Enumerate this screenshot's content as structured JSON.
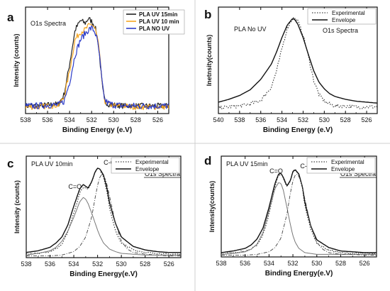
{
  "chart_data": [
    {
      "panel_letter": "a",
      "type": "line",
      "annotation": "O1s Spectra",
      "xlabel": "Binding Energy (e.V)",
      "ylabel": "Intensity (counts)",
      "xlim": [
        538,
        525
      ],
      "x_ticks": [
        538,
        536,
        534,
        532,
        530,
        528,
        526
      ],
      "y_ticks": "none",
      "legend_position": "top-right",
      "series": [
        {
          "name": "PLA  UV 15min",
          "color": "#222222",
          "noise": 0.03,
          "x": [
            538,
            537,
            536,
            535,
            534.5,
            534,
            533.5,
            533,
            532.6,
            532.3,
            532,
            531.7,
            531.4,
            531.2,
            531,
            530.8,
            530.5,
            530,
            529,
            528,
            527,
            526,
            525
          ],
          "y": [
            0.08,
            0.08,
            0.09,
            0.1,
            0.2,
            0.52,
            0.88,
            0.98,
            0.95,
            1.0,
            0.97,
            0.92,
            0.75,
            0.5,
            0.25,
            0.13,
            0.1,
            0.09,
            0.08,
            0.08,
            0.08,
            0.08,
            0.08
          ]
        },
        {
          "name": "PLA  UV 10 min",
          "color": "#f5a623",
          "noise": 0.03,
          "x": [
            538,
            537,
            536,
            535,
            534.5,
            534,
            533.5,
            533,
            532.6,
            532.3,
            532,
            531.7,
            531.4,
            531.2,
            531,
            530.8,
            530.5,
            530,
            529,
            528,
            527,
            526,
            525
          ],
          "y": [
            0.07,
            0.07,
            0.08,
            0.09,
            0.17,
            0.45,
            0.78,
            0.86,
            0.88,
            0.92,
            0.94,
            0.9,
            0.75,
            0.52,
            0.27,
            0.13,
            0.1,
            0.08,
            0.08,
            0.07,
            0.07,
            0.07,
            0.07
          ]
        },
        {
          "name": "PLA  NO UV",
          "color": "#2c3cc8",
          "noise": 0.035,
          "x": [
            538,
            537,
            536,
            535,
            534.5,
            534,
            533.5,
            533,
            532.6,
            532.3,
            532,
            531.7,
            531.4,
            531.2,
            531,
            530.8,
            530.5,
            530,
            529,
            528,
            527,
            526,
            525
          ],
          "y": [
            0.08,
            0.08,
            0.09,
            0.09,
            0.13,
            0.33,
            0.62,
            0.78,
            0.84,
            0.88,
            0.9,
            0.86,
            0.72,
            0.5,
            0.27,
            0.14,
            0.11,
            0.09,
            0.08,
            0.08,
            0.08,
            0.08,
            0.08
          ]
        }
      ]
    },
    {
      "panel_letter": "b",
      "type": "line",
      "title": "PLA No UV",
      "annotation": "O1s Spectra",
      "xlabel": "Binding Energy (e.V)",
      "ylabel": "Inetnsity(counts)",
      "xlim": [
        540,
        525
      ],
      "x_ticks": [
        540,
        538,
        536,
        534,
        532,
        530,
        528,
        526
      ],
      "y_ticks": "none",
      "legend_position": "top-right",
      "series": [
        {
          "name": "Experimental",
          "style": "dotted",
          "noise": 0.02,
          "x": [
            540,
            539,
            538,
            537,
            536,
            535,
            534.5,
            534,
            533.5,
            533,
            532.8,
            532.5,
            532,
            531.5,
            531,
            530.5,
            530,
            529.5,
            529,
            528,
            527,
            526,
            525
          ],
          "y": [
            0.06,
            0.07,
            0.08,
            0.1,
            0.14,
            0.28,
            0.45,
            0.68,
            0.9,
            1.0,
            1.0,
            0.97,
            0.83,
            0.6,
            0.35,
            0.2,
            0.13,
            0.1,
            0.08,
            0.08,
            0.07,
            0.07,
            0.07
          ]
        },
        {
          "name": "Envelope",
          "style": "solid",
          "noise": 0,
          "x": [
            540,
            539,
            538,
            537,
            536,
            535,
            534.5,
            534,
            533.5,
            533,
            532.8,
            532.5,
            532,
            531.5,
            531,
            530.5,
            530,
            529.5,
            529,
            528,
            527,
            526,
            525
          ],
          "y": [
            0.12,
            0.15,
            0.19,
            0.25,
            0.36,
            0.52,
            0.65,
            0.8,
            0.93,
            1.0,
            0.99,
            0.94,
            0.8,
            0.62,
            0.45,
            0.33,
            0.26,
            0.21,
            0.18,
            0.15,
            0.13,
            0.12,
            0.11
          ]
        }
      ]
    },
    {
      "panel_letter": "c",
      "type": "line",
      "title": "PLA  UV 10min",
      "annotation": "O1s Spectra",
      "xlabel": "Binding Energy(e.V)",
      "ylabel": "Intensity (counts)",
      "xlim": [
        538,
        525
      ],
      "x_ticks": [
        538,
        536,
        534,
        532,
        530,
        528,
        526
      ],
      "y_ticks": "none",
      "legend_position": "top-right",
      "peak_labels": [
        {
          "text": "C=O",
          "x": 533.9,
          "y": 0.78
        },
        {
          "text": "C-O",
          "x": 531.0,
          "y": 1.06
        }
      ],
      "series": [
        {
          "name": "Experimental",
          "style": "dotted",
          "noise": 0.008,
          "x": [
            538,
            537,
            536,
            535.5,
            535,
            534.5,
            534,
            533.5,
            533.2,
            533,
            532.8,
            532.5,
            532.2,
            532,
            531.8,
            531.5,
            531.2,
            531,
            530.5,
            530,
            529,
            528,
            527,
            526,
            525
          ],
          "y": [
            0.02,
            0.03,
            0.05,
            0.08,
            0.14,
            0.28,
            0.5,
            0.73,
            0.8,
            0.79,
            0.78,
            0.86,
            0.98,
            1.02,
            1.0,
            0.92,
            0.74,
            0.56,
            0.29,
            0.15,
            0.07,
            0.04,
            0.03,
            0.02,
            0.02
          ]
        },
        {
          "name": "Envelope",
          "style": "solid",
          "noise": 0,
          "x": [
            538,
            537,
            536,
            535.5,
            535,
            534.5,
            534,
            533.5,
            533.2,
            533,
            532.8,
            532.5,
            532.2,
            532,
            531.8,
            531.5,
            531.2,
            531,
            530.5,
            530,
            529,
            528,
            527,
            526,
            525
          ],
          "y": [
            0.04,
            0.06,
            0.1,
            0.15,
            0.22,
            0.36,
            0.58,
            0.78,
            0.83,
            0.81,
            0.79,
            0.86,
            0.98,
            1.02,
            1.01,
            0.94,
            0.78,
            0.62,
            0.38,
            0.22,
            0.11,
            0.07,
            0.05,
            0.04,
            0.04
          ]
        },
        {
          "name": "C=O component",
          "style": "solid-gray",
          "noise": 0,
          "x": [
            538,
            537,
            536,
            535.5,
            535,
            534.5,
            534,
            533.5,
            533.2,
            533,
            532.8,
            532.5,
            532.2,
            532,
            531.8,
            531.5,
            531,
            530.5,
            530,
            529,
            528,
            527,
            526,
            525
          ],
          "y": [
            0.01,
            0.03,
            0.06,
            0.1,
            0.17,
            0.29,
            0.45,
            0.63,
            0.68,
            0.66,
            0.61,
            0.5,
            0.38,
            0.3,
            0.23,
            0.15,
            0.08,
            0.05,
            0.03,
            0.02,
            0.01,
            0.01,
            0.01,
            0.01
          ]
        },
        {
          "name": "C-O component",
          "style": "dashdot",
          "noise": 0,
          "x": [
            538,
            536,
            535,
            534,
            533.5,
            533,
            532.5,
            532.2,
            532,
            531.8,
            531.6,
            531.3,
            531,
            530.5,
            530,
            529.5,
            529,
            528,
            527,
            526,
            525
          ],
          "y": [
            0.0,
            0.0,
            0.01,
            0.05,
            0.11,
            0.22,
            0.45,
            0.68,
            0.82,
            0.92,
            0.95,
            0.88,
            0.7,
            0.38,
            0.17,
            0.08,
            0.04,
            0.02,
            0.01,
            0.0,
            0.0
          ]
        }
      ]
    },
    {
      "panel_letter": "d",
      "type": "line",
      "title": "PLA UV 15min",
      "annotation": "O1s Spectra",
      "xlabel": "Binding Energy(e.V)",
      "ylabel": "Intensity(counts)",
      "xlim": [
        538,
        525
      ],
      "x_ticks": [
        538,
        536,
        534,
        532,
        530,
        528,
        526
      ],
      "y_ticks": "none",
      "legend_position": "top-right",
      "peak_labels": [
        {
          "text": "C=O",
          "x": 533.4,
          "y": 0.96
        },
        {
          "text": "C-O",
          "x": 530.9,
          "y": 1.02
        }
      ],
      "series": [
        {
          "name": "Experimental",
          "style": "dotted",
          "noise": 0.01,
          "x": [
            538,
            537,
            536,
            535.5,
            535,
            534.5,
            534,
            533.5,
            533.2,
            533,
            532.8,
            532.5,
            532.2,
            532,
            531.8,
            531.5,
            531.2,
            531,
            530.5,
            530,
            529,
            528,
            527,
            526,
            525
          ],
          "y": [
            0.02,
            0.03,
            0.05,
            0.07,
            0.12,
            0.24,
            0.48,
            0.8,
            0.94,
            0.95,
            0.9,
            0.8,
            0.88,
            0.98,
            1.0,
            0.94,
            0.78,
            0.58,
            0.3,
            0.14,
            0.06,
            0.03,
            0.02,
            0.02,
            0.02
          ]
        },
        {
          "name": "Envelope",
          "style": "solid",
          "noise": 0,
          "x": [
            538,
            537,
            536,
            535.5,
            535,
            534.5,
            534,
            533.5,
            533.2,
            533,
            532.8,
            532.5,
            532.2,
            532,
            531.8,
            531.5,
            531.2,
            531,
            530.5,
            530,
            529,
            528,
            527,
            526,
            525
          ],
          "y": [
            0.03,
            0.05,
            0.08,
            0.12,
            0.19,
            0.32,
            0.56,
            0.84,
            0.95,
            0.96,
            0.91,
            0.81,
            0.88,
            0.98,
            1.0,
            0.95,
            0.8,
            0.62,
            0.34,
            0.18,
            0.09,
            0.05,
            0.04,
            0.03,
            0.03
          ]
        },
        {
          "name": "C=O component",
          "style": "solid-gray",
          "noise": 0,
          "x": [
            538,
            537,
            536,
            535.5,
            535,
            534.5,
            534,
            533.5,
            533.2,
            533,
            532.8,
            532.5,
            532.2,
            532,
            531.8,
            531.5,
            531,
            530.5,
            530,
            529,
            528,
            527,
            526,
            525
          ],
          "y": [
            0.01,
            0.02,
            0.04,
            0.07,
            0.13,
            0.27,
            0.52,
            0.78,
            0.85,
            0.84,
            0.76,
            0.56,
            0.35,
            0.23,
            0.15,
            0.08,
            0.03,
            0.02,
            0.01,
            0.01,
            0.01,
            0.01,
            0.01,
            0.01
          ]
        },
        {
          "name": "C-O component",
          "style": "dashdot",
          "noise": 0,
          "x": [
            538,
            536,
            535,
            534,
            533.5,
            533,
            532.5,
            532.2,
            532,
            531.8,
            531.6,
            531.3,
            531,
            530.5,
            530,
            529.5,
            529,
            528,
            527,
            526,
            525
          ],
          "y": [
            0.0,
            0.0,
            0.01,
            0.04,
            0.09,
            0.2,
            0.48,
            0.74,
            0.87,
            0.94,
            0.95,
            0.86,
            0.66,
            0.34,
            0.15,
            0.07,
            0.03,
            0.01,
            0.01,
            0.0,
            0.0
          ]
        }
      ]
    }
  ]
}
